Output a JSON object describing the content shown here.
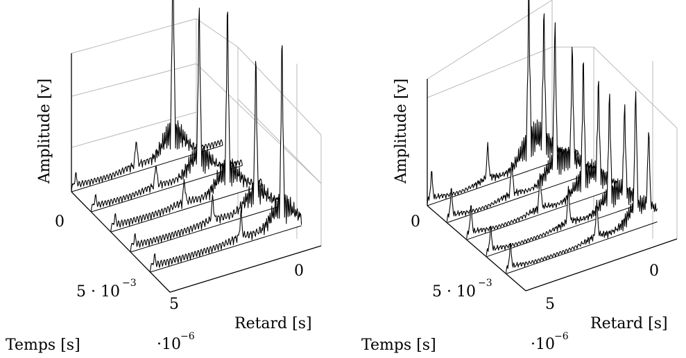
{
  "chart_data": [
    {
      "type": "waterfall-3d-line",
      "xlabel": "Retard [s]",
      "ylabel": "Temps [s]",
      "zlabel": "Amplitude [v]",
      "x_ticks": [
        {
          "value": 0,
          "label": "0"
        },
        {
          "value": 5,
          "label": "5"
        }
      ],
      "x_scale_label": "·10",
      "x_scale_exp": "−6",
      "y_ticks": [
        {
          "value": 0,
          "label": "0"
        },
        {
          "value": 0.005,
          "label": "5 · 10",
          "exp": "−3"
        }
      ],
      "z_ticks": [],
      "series": [
        {
          "time": 0.0,
          "peaks": [
            {
              "delay": 6.8,
              "amp": 0.06
            },
            {
              "delay": 2.3,
              "amp": 1.0
            },
            {
              "delay": 4.0,
              "amp": 0.14
            }
          ],
          "ripple": 0.06
        },
        {
          "time": 0.002,
          "peaks": [
            {
              "delay": 6.8,
              "amp": 0.05
            },
            {
              "delay": 2.0,
              "amp": 0.82
            },
            {
              "delay": 4.0,
              "amp": 0.12
            }
          ],
          "ripple": 0.06
        },
        {
          "time": 0.004,
          "peaks": [
            {
              "delay": 6.8,
              "amp": 0.05
            },
            {
              "delay": 1.6,
              "amp": 0.9
            },
            {
              "delay": 3.6,
              "amp": 0.12
            }
          ],
          "ripple": 0.07
        },
        {
          "time": 0.006,
          "peaks": [
            {
              "delay": 6.8,
              "amp": 0.05
            },
            {
              "delay": 1.2,
              "amp": 0.72
            },
            {
              "delay": 3.2,
              "amp": 0.12
            }
          ],
          "ripple": 0.07
        },
        {
          "time": 0.008,
          "peaks": [
            {
              "delay": 6.8,
              "amp": 0.05
            },
            {
              "delay": 0.9,
              "amp": 0.9
            },
            {
              "delay": 2.8,
              "amp": 0.13
            }
          ],
          "ripple": 0.07
        }
      ]
    },
    {
      "type": "waterfall-3d-line",
      "xlabel": "Retard [s]",
      "ylabel": "Temps [s]",
      "zlabel": "Amplitude [v]",
      "x_ticks": [
        {
          "value": 0,
          "label": "0"
        },
        {
          "value": 5,
          "label": "5"
        }
      ],
      "x_scale_label": "·10",
      "x_scale_exp": "−6",
      "y_ticks": [
        {
          "value": 0,
          "label": "0"
        },
        {
          "value": 0.005,
          "label": "5 · 10",
          "exp": "−3"
        }
      ],
      "z_ticks": [],
      "series": [
        {
          "time": 0.0,
          "peaks": [
            {
              "delay": 6.8,
              "amp": 0.16
            },
            {
              "delay": 4.2,
              "amp": 0.2
            },
            {
              "delay": 2.3,
              "amp": 0.9
            },
            {
              "delay": 1.6,
              "amp": 0.75
            }
          ],
          "ripple": 0.04
        },
        {
          "time": 0.002,
          "peaks": [
            {
              "delay": 6.8,
              "amp": 0.16
            },
            {
              "delay": 4.0,
              "amp": 0.2
            },
            {
              "delay": 2.0,
              "amp": 0.82
            },
            {
              "delay": 1.2,
              "amp": 0.65
            }
          ],
          "ripple": 0.04
        },
        {
          "time": 0.004,
          "peaks": [
            {
              "delay": 6.8,
              "amp": 0.16
            },
            {
              "delay": 3.6,
              "amp": 0.2
            },
            {
              "delay": 1.6,
              "amp": 0.7
            },
            {
              "delay": 0.9,
              "amp": 0.55
            }
          ],
          "ripple": 0.04
        },
        {
          "time": 0.006,
          "peaks": [
            {
              "delay": 6.8,
              "amp": 0.14
            },
            {
              "delay": 3.2,
              "amp": 0.2
            },
            {
              "delay": 1.3,
              "amp": 0.6
            },
            {
              "delay": 0.6,
              "amp": 0.5
            }
          ],
          "ripple": 0.04
        },
        {
          "time": 0.008,
          "peaks": [
            {
              "delay": 6.8,
              "amp": 0.14
            },
            {
              "delay": 2.8,
              "amp": 0.2
            },
            {
              "delay": 1.0,
              "amp": 0.7
            },
            {
              "delay": 0.4,
              "amp": 0.45
            }
          ],
          "ripple": 0.04
        }
      ]
    }
  ]
}
